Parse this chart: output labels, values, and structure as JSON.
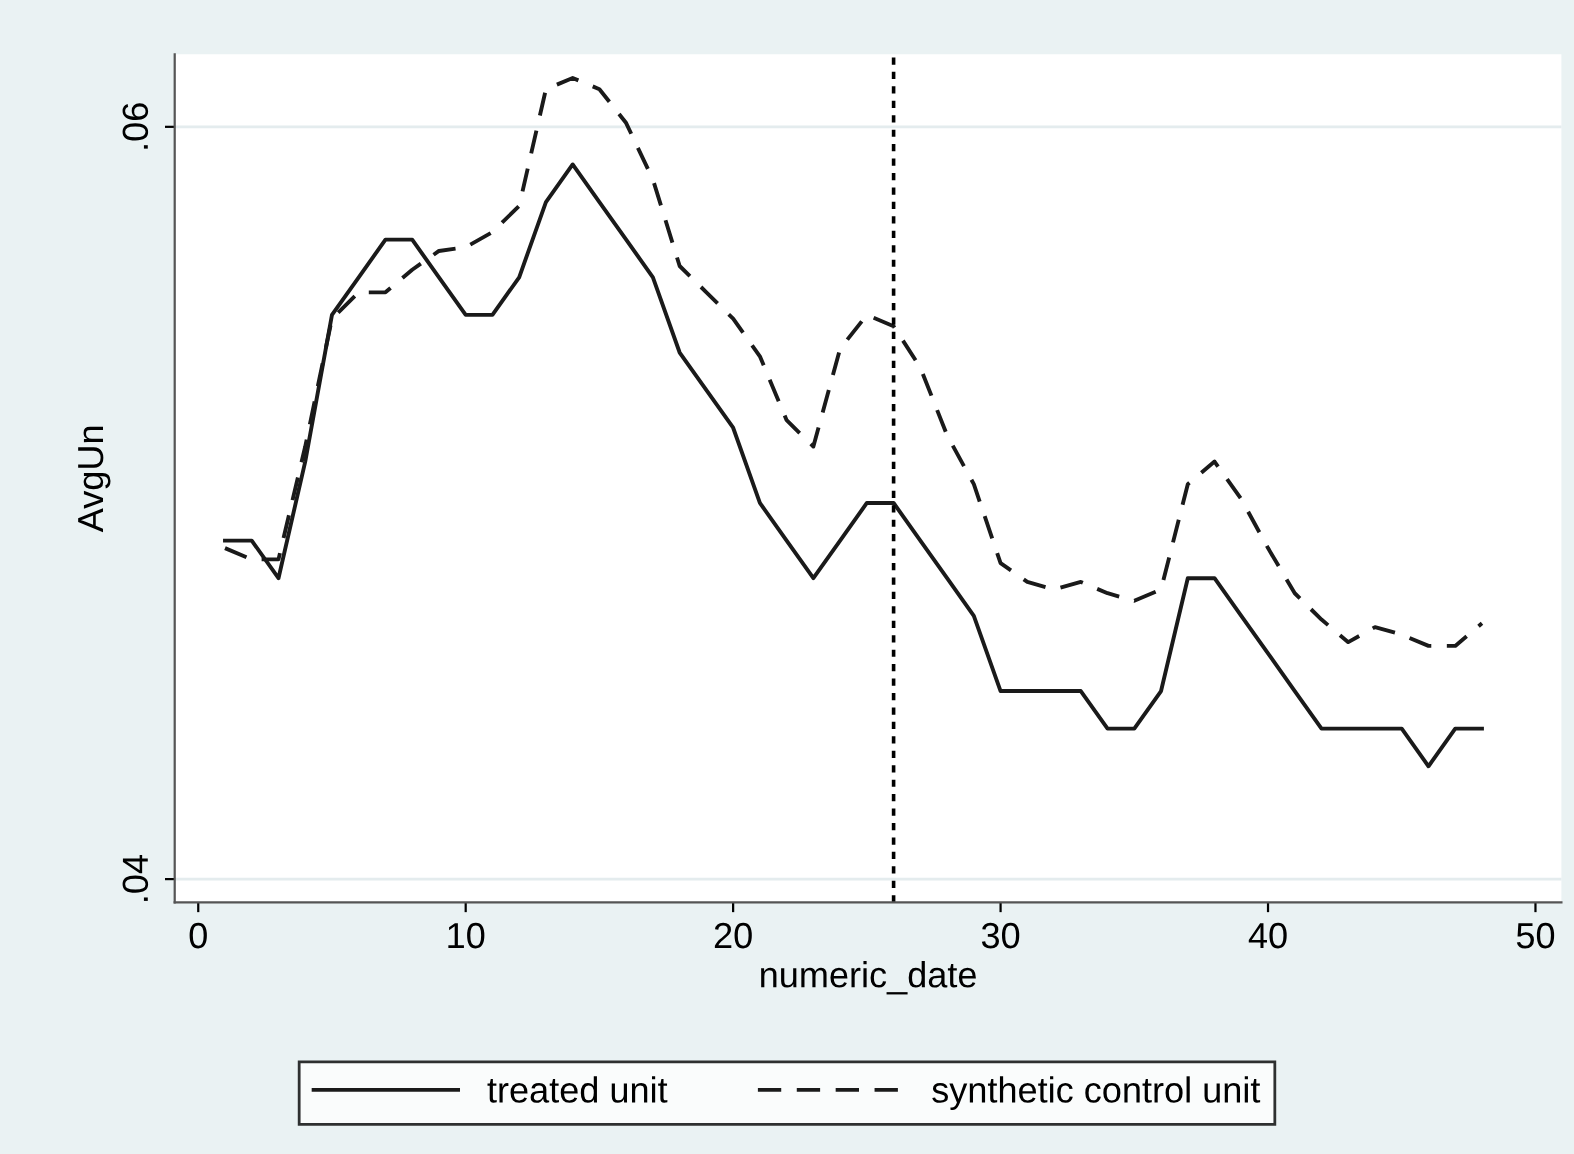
{
  "chart_data": {
    "type": "line",
    "xlabel": "numeric_date",
    "ylabel": "AvgUn",
    "x": [
      1,
      2,
      3,
      4,
      5,
      6,
      7,
      8,
      9,
      10,
      11,
      12,
      13,
      14,
      15,
      16,
      17,
      18,
      19,
      20,
      21,
      22,
      23,
      24,
      25,
      26,
      27,
      28,
      29,
      30,
      31,
      32,
      33,
      34,
      35,
      36,
      37,
      38,
      39,
      40,
      41,
      42,
      43,
      44,
      45,
      46,
      47,
      48
    ],
    "series": [
      {
        "name": "treated unit",
        "color": "#1a1a1a",
        "line_style": "solid",
        "values": [
          0.049,
          0.049,
          0.048,
          0.0511,
          0.055,
          0.056,
          0.057,
          0.057,
          0.056,
          0.055,
          0.055,
          0.056,
          0.058,
          0.059,
          0.058,
          0.057,
          0.056,
          0.054,
          0.053,
          0.052,
          0.05,
          0.049,
          0.048,
          0.049,
          0.05,
          0.05,
          0.049,
          0.048,
          0.047,
          0.045,
          0.045,
          0.045,
          0.045,
          0.044,
          0.044,
          0.045,
          0.048,
          0.048,
          0.047,
          0.046,
          0.045,
          0.044,
          0.044,
          0.044,
          0.044,
          0.043,
          0.044,
          0.044
        ]
      },
      {
        "name": "synthetic control unit",
        "color": "#1a1a1a",
        "line_style": "dashed",
        "values": [
          0.0488,
          0.0485,
          0.0485,
          0.0515,
          0.0549,
          0.0556,
          0.0556,
          0.0562,
          0.0567,
          0.0568,
          0.0572,
          0.0579,
          0.061,
          0.0613,
          0.061,
          0.0601,
          0.0586,
          0.0563,
          0.0556,
          0.0549,
          0.0539,
          0.0522,
          0.0515,
          0.0541,
          0.055,
          0.0547,
          0.0536,
          0.0518,
          0.0505,
          0.0484,
          0.0479,
          0.0477,
          0.0479,
          0.0476,
          0.0474,
          0.0477,
          0.0505,
          0.0511,
          0.0501,
          0.0488,
          0.0476,
          0.0469,
          0.0463,
          0.0467,
          0.0465,
          0.0462,
          0.0462,
          0.0468
        ]
      }
    ],
    "xlim": [
      -0.88,
      50.97
    ],
    "ylim": [
      0.03938,
      0.06193
    ],
    "xticks": [
      0,
      10,
      20,
      30,
      40,
      50
    ],
    "yticks": [
      {
        "value": 0.04,
        "label": ".04"
      },
      {
        "value": 0.06,
        "label": ".06"
      }
    ],
    "ref_lines": [
      {
        "axis": "x",
        "value": 26,
        "color": "#000000",
        "line_style": "dotted"
      }
    ],
    "grid": "y",
    "legend": "bottom",
    "marker": "none"
  }
}
